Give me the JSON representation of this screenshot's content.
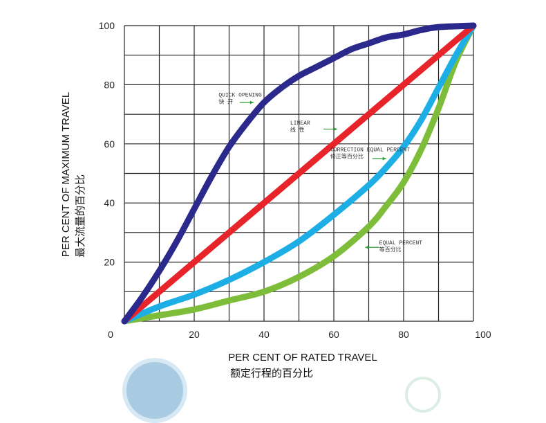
{
  "chart_data": {
    "type": "line",
    "title": "",
    "xlabel": "PER CENT OF RATED TRAVEL",
    "xlabel_cn": "额定行程的百分比",
    "ylabel": "PER CENT OF MAXIMUM TRAVEL",
    "ylabel_cn": "最大流量的百分比",
    "xlim": [
      0,
      100
    ],
    "ylim": [
      0,
      100
    ],
    "x_ticks": [
      "0",
      "20",
      "40",
      "60",
      "80",
      "100"
    ],
    "y_ticks": [
      "20",
      "40",
      "60",
      "80",
      "100"
    ],
    "grid": true,
    "series": [
      {
        "key": "quick",
        "name": "QUICK OPENING",
        "name_cn": "快 开",
        "color": "#2b2a8c",
        "points": [
          [
            0,
            0
          ],
          [
            5,
            8
          ],
          [
            10,
            17
          ],
          [
            15,
            27
          ],
          [
            20,
            38
          ],
          [
            25,
            49
          ],
          [
            30,
            59
          ],
          [
            35,
            67
          ],
          [
            40,
            74
          ],
          [
            45,
            79
          ],
          [
            50,
            83
          ],
          [
            55,
            86
          ],
          [
            60,
            89
          ],
          [
            65,
            92
          ],
          [
            70,
            94
          ],
          [
            75,
            96
          ],
          [
            80,
            97
          ],
          [
            85,
            98.5
          ],
          [
            90,
            99.5
          ],
          [
            100,
            100
          ]
        ]
      },
      {
        "key": "linear",
        "name": "LINEAR",
        "name_cn": "线 性",
        "color": "#e8242b",
        "points": [
          [
            0,
            0
          ],
          [
            100,
            100
          ]
        ]
      },
      {
        "key": "corr",
        "name": "CORRECTION EQUAL PERCENT",
        "name_cn": "修正等百分比",
        "color": "#1eaee6",
        "points": [
          [
            0,
            0
          ],
          [
            10,
            5
          ],
          [
            20,
            9
          ],
          [
            30,
            14
          ],
          [
            40,
            20
          ],
          [
            50,
            27
          ],
          [
            60,
            36
          ],
          [
            70,
            46
          ],
          [
            75,
            52
          ],
          [
            80,
            59
          ],
          [
            85,
            68
          ],
          [
            90,
            79
          ],
          [
            95,
            90
          ],
          [
            100,
            100
          ]
        ]
      },
      {
        "key": "equal",
        "name": "EQUAL PERCENT",
        "name_cn": "等百分比",
        "color": "#7dbd3a",
        "points": [
          [
            0,
            0
          ],
          [
            10,
            2
          ],
          [
            20,
            4
          ],
          [
            30,
            7
          ],
          [
            40,
            10
          ],
          [
            50,
            15
          ],
          [
            60,
            22
          ],
          [
            70,
            32
          ],
          [
            75,
            39
          ],
          [
            80,
            47
          ],
          [
            85,
            58
          ],
          [
            90,
            72
          ],
          [
            95,
            88
          ],
          [
            100,
            100
          ]
        ]
      }
    ],
    "annotations": [
      {
        "series": "quick",
        "lines": [
          "QUICK OPENING",
          "快 开"
        ],
        "label_at": [
          27,
          76
        ],
        "arrow_to": [
          37,
          74
        ],
        "arrow_color": "#2f9e3a"
      },
      {
        "series": "linear",
        "lines": [
          "LINEAR",
          "线 性"
        ],
        "label_at": [
          47.5,
          66.5
        ],
        "arrow_to": [
          61,
          65
        ],
        "arrow_color": "#2f9e3a"
      },
      {
        "series": "corr",
        "lines": [
          "CORRECTION EQUAL PERCENT",
          "修正等百分比"
        ],
        "label_at": [
          59,
          57.5
        ],
        "arrow_to": [
          75,
          55
        ],
        "arrow_color": "#2f9e3a"
      },
      {
        "series": "equal",
        "lines": [
          "EQUAL PERCENT",
          "等百分比"
        ],
        "label_at": [
          73,
          26
        ],
        "arrow_to": [
          69,
          25
        ],
        "arrow_color": "#2f9e3a"
      }
    ]
  }
}
